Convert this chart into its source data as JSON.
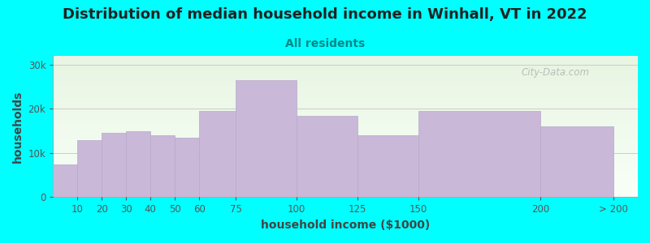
{
  "title": "Distribution of median household income in Winhall, VT in 2022",
  "subtitle": "All residents",
  "xlabel": "household income ($1000)",
  "ylabel": "households",
  "background_color": "#00ffff",
  "bar_color": "#c9b8d8",
  "bar_edge_color": "#b8a8cc",
  "bin_edges": [
    0,
    10,
    20,
    30,
    40,
    50,
    60,
    75,
    100,
    125,
    150,
    200,
    230
  ],
  "values": [
    7500,
    13000,
    14500,
    15000,
    14000,
    13500,
    19500,
    26500,
    18500,
    14000,
    19500,
    16000
  ],
  "xtick_positions": [
    10,
    20,
    30,
    40,
    50,
    60,
    75,
    100,
    125,
    150,
    200,
    230
  ],
  "xtick_labels": [
    "10",
    "20",
    "30",
    "40",
    "50",
    "60",
    "75",
    "100",
    "125",
    "150",
    "200",
    "> 200"
  ],
  "yticks": [
    0,
    10000,
    20000,
    30000
  ],
  "ytick_labels": [
    "0",
    "10k",
    "20k",
    "30k"
  ],
  "ylim": [
    0,
    32000
  ],
  "xlim": [
    0,
    240
  ],
  "title_fontsize": 13,
  "subtitle_fontsize": 10,
  "axis_label_fontsize": 10,
  "tick_fontsize": 8.5,
  "watermark_text": "City-Data.com",
  "gradient_top_color": "#e8f5e2",
  "gradient_bottom_color": "#f8fff8"
}
